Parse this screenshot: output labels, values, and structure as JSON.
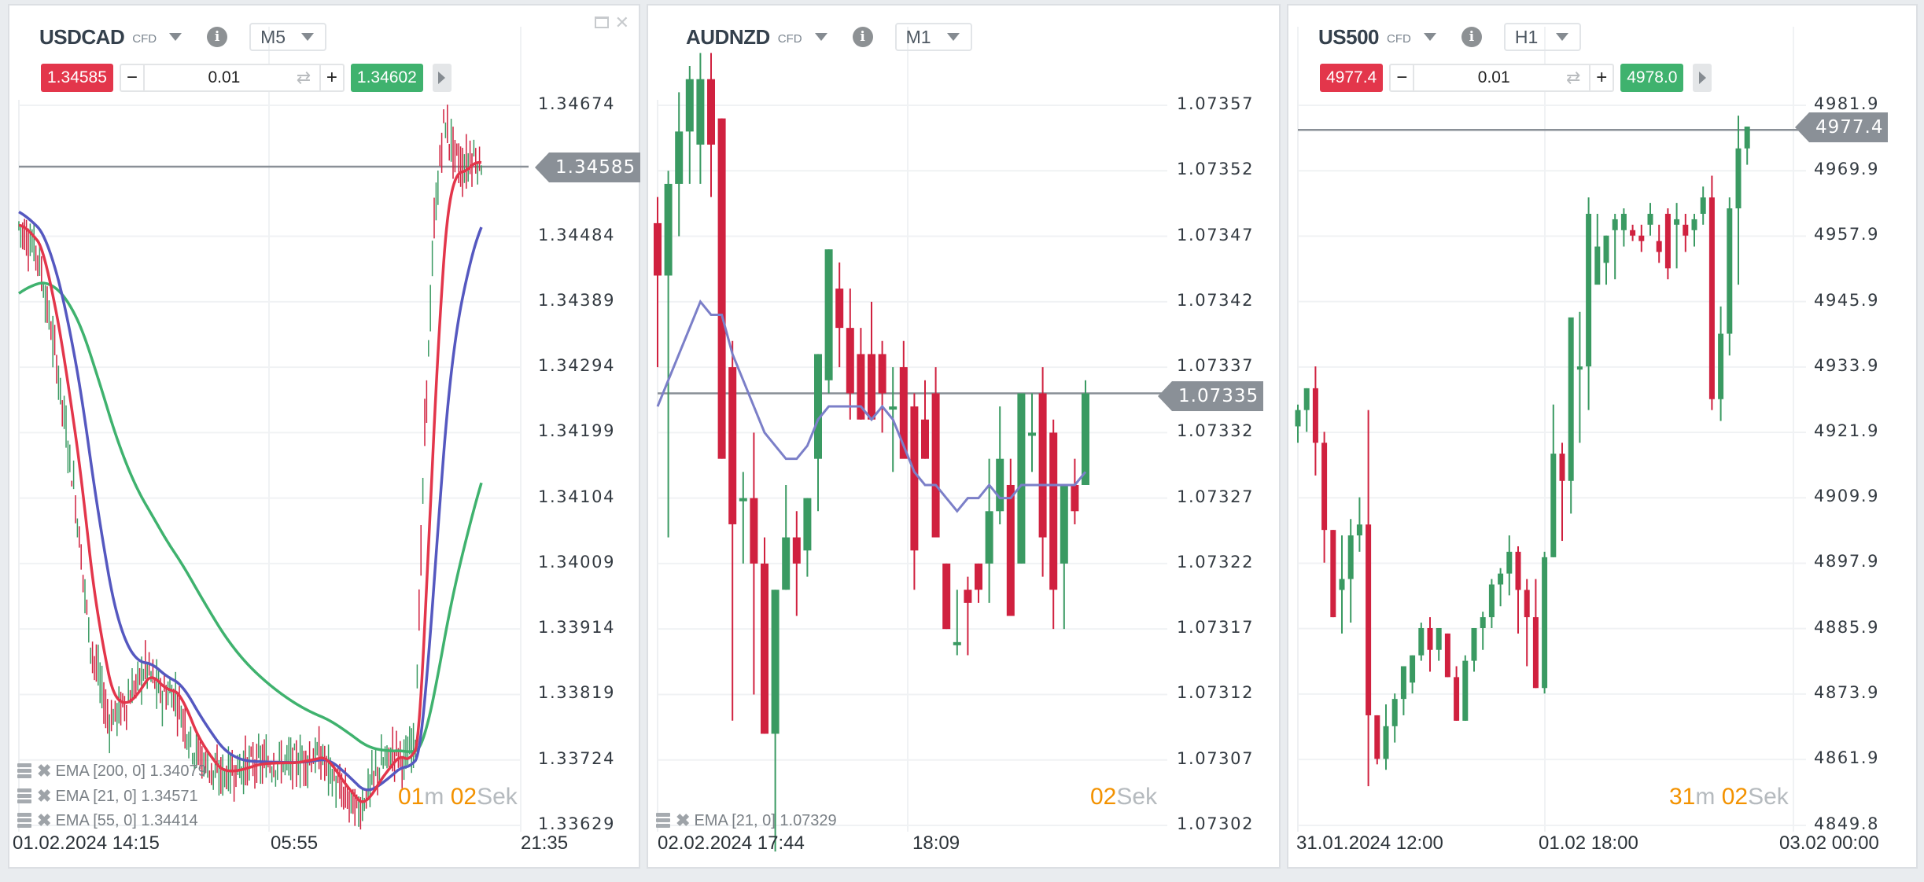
{
  "panels": [
    {
      "symbol": "USDCAD",
      "type_badge": "CFD",
      "timeframe": "M5",
      "sell_price": "1.34585",
      "buy_price": "1.34602",
      "quantity": "0.01",
      "current_price_label": "1.34585",
      "timer": {
        "m": "01",
        "m_unit": "m",
        "s": "02",
        "s_unit": "Sek"
      },
      "y_ticks": [
        "1.34674",
        "1.34484",
        "1.34389",
        "1.34294",
        "1.34199",
        "1.34104",
        "1.34009",
        "1.33914",
        "1.33819",
        "1.33724",
        "1.33629"
      ],
      "x_ticks": [
        "01.02.2024 14:15",
        "05:55",
        "21:35"
      ],
      "legend": [
        {
          "label": "EMA [200, 0] 1.34079",
          "color": "#3fb26e"
        },
        {
          "label": "EMA [21, 0] 1.34571",
          "color": "#e3364b"
        },
        {
          "label": "EMA [55, 0] 1.34414",
          "color": "#5558c0"
        }
      ],
      "has_window_controls": true
    },
    {
      "symbol": "AUDNZD",
      "type_badge": "CFD",
      "timeframe": "M1",
      "current_price_label": "1.07335",
      "timer": {
        "s": "02",
        "s_unit": "Sek"
      },
      "y_ticks": [
        "1.07357",
        "1.07352",
        "1.07347",
        "1.07342",
        "1.07337",
        "1.07332",
        "1.07327",
        "1.07322",
        "1.07317",
        "1.07312",
        "1.07307",
        "1.07302"
      ],
      "x_ticks": [
        "02.02.2024 17:44",
        "18:09"
      ],
      "legend": [
        {
          "label": "EMA [21, 0] 1.07329",
          "color": "#7b7fc8"
        }
      ]
    },
    {
      "symbol": "US500",
      "type_badge": "CFD",
      "timeframe": "H1",
      "sell_price": "4977.4",
      "buy_price": "4978.0",
      "quantity": "0.01",
      "current_price_label": "4977.4",
      "timer": {
        "m": "31",
        "m_unit": "m",
        "s": "02",
        "s_unit": "Sek"
      },
      "y_ticks": [
        "4981.9",
        "4969.9",
        "4957.9",
        "4945.9",
        "4933.9",
        "4921.9",
        "4909.9",
        "4897.9",
        "4885.9",
        "4873.9",
        "4861.9",
        "4849.8"
      ],
      "x_ticks": [
        "31.01.2024 12:00",
        "01.02 18:00",
        "03.02 00:00"
      ],
      "legend": []
    }
  ],
  "colors": {
    "bull": "#3a9a62",
    "bear": "#d0213f",
    "sell_bg": "#e3364b",
    "buy_bg": "#3fb26e",
    "timer_accent": "#f39200",
    "price_line": "#8a9097"
  },
  "chart_data": [
    {
      "type": "candlestick",
      "title": "USDCAD CFD M5",
      "ylim": [
        1.33629,
        1.34674
      ],
      "y_ticks": [
        1.34674,
        1.34484,
        1.34389,
        1.34294,
        1.34199,
        1.34104,
        1.34009,
        1.33914,
        1.33819,
        1.33724,
        1.33629
      ],
      "x_ticks": [
        "01.02.2024 14:15",
        "05:55",
        "21:35"
      ],
      "current_price": 1.34585,
      "series": [
        {
          "name": "EMA [200, 0]",
          "last": 1.34079,
          "color": "#3fb26e"
        },
        {
          "name": "EMA [21, 0]",
          "last": 1.34571,
          "color": "#e3364b"
        },
        {
          "name": "EMA [55, 0]",
          "last": 1.34414,
          "color": "#5558c0"
        }
      ],
      "trend_summary": "Sharp fall from ~1.3450 to ~1.3372, sideways ~1.3370-1.3380, then sharp rally to ~1.3465"
    },
    {
      "type": "candlestick",
      "title": "AUDNZD CFD M1",
      "ylim": [
        1.07302,
        1.07357
      ],
      "y_ticks": [
        1.07357,
        1.07352,
        1.07347,
        1.07342,
        1.07337,
        1.07332,
        1.07327,
        1.07322,
        1.07317,
        1.07312,
        1.07307,
        1.07302
      ],
      "x_ticks": [
        "02.02.2024 17:44",
        "18:09"
      ],
      "current_price": 1.07335,
      "series": [
        {
          "name": "EMA [21, 0]",
          "last": 1.07329,
          "color": "#7b7fc8"
        }
      ],
      "ohlc": [
        [
          1.07348,
          1.0735,
          1.07337,
          1.07344
        ],
        [
          1.07344,
          1.07352,
          1.07324,
          1.07351
        ],
        [
          1.07351,
          1.07358,
          1.07347,
          1.07355
        ],
        [
          1.07355,
          1.0736,
          1.07351,
          1.07359
        ],
        [
          1.07354,
          1.07361,
          1.07351,
          1.07359
        ],
        [
          1.07359,
          1.07361,
          1.0735,
          1.07354
        ],
        [
          1.07356,
          1.07356,
          1.0733,
          1.0733
        ],
        [
          1.07337,
          1.07339,
          1.0731,
          1.07325
        ],
        [
          1.07327,
          1.07329,
          1.07322,
          1.07327
        ],
        [
          1.07327,
          1.07332,
          1.07312,
          1.07322
        ],
        [
          1.07322,
          1.07324,
          1.07309,
          1.07309
        ],
        [
          1.07309,
          1.0732,
          1.073,
          1.0732
        ],
        [
          1.0732,
          1.07328,
          1.0732,
          1.07324
        ],
        [
          1.07324,
          1.07326,
          1.07318,
          1.07322
        ],
        [
          1.07323,
          1.07327,
          1.07321,
          1.07327
        ],
        [
          1.0733,
          1.07338,
          1.07326,
          1.07338
        ],
        [
          1.07336,
          1.07346,
          1.07335,
          1.07346
        ],
        [
          1.07343,
          1.07345,
          1.07337,
          1.0734
        ],
        [
          1.0734,
          1.07343,
          1.07333,
          1.07335
        ],
        [
          1.07338,
          1.0734,
          1.07333,
          1.07333
        ],
        [
          1.07338,
          1.07342,
          1.07334,
          1.07333
        ],
        [
          1.07338,
          1.07339,
          1.07332,
          1.07335
        ],
        [
          1.07334,
          1.07337,
          1.07329,
          1.07334
        ],
        [
          1.07337,
          1.07339,
          1.07333,
          1.0733
        ],
        [
          1.07334,
          1.07335,
          1.0732,
          1.07323
        ],
        [
          1.07333,
          1.07336,
          1.0733,
          1.0733
        ],
        [
          1.07335,
          1.07337,
          1.07325,
          1.07324
        ],
        [
          1.07322,
          1.07322,
          1.07317,
          1.07317
        ],
        [
          1.07316,
          1.0732,
          1.07315,
          1.07316
        ],
        [
          1.0732,
          1.07321,
          1.07315,
          1.07319
        ],
        [
          1.07322,
          1.07322,
          1.07319,
          1.0732
        ],
        [
          1.07322,
          1.0733,
          1.07319,
          1.07326
        ],
        [
          1.07326,
          1.07334,
          1.07325,
          1.0733
        ],
        [
          1.07328,
          1.0733,
          1.07318,
          1.07318
        ],
        [
          1.07322,
          1.0733,
          1.07322,
          1.07335
        ],
        [
          1.07332,
          1.07335,
          1.07329,
          1.07332
        ],
        [
          1.07335,
          1.07337,
          1.07321,
          1.07324
        ],
        [
          1.07332,
          1.07333,
          1.07317,
          1.0732
        ],
        [
          1.07322,
          1.07328,
          1.07317,
          1.07328
        ],
        [
          1.07328,
          1.0733,
          1.07325,
          1.07326
        ],
        [
          1.07328,
          1.07336,
          1.07328,
          1.07335
        ]
      ]
    },
    {
      "type": "candlestick",
      "title": "US500 CFD H1",
      "ylim": [
        4849.8,
        4981.9
      ],
      "y_ticks": [
        4981.9,
        4969.9,
        4957.9,
        4945.9,
        4933.9,
        4921.9,
        4909.9,
        4897.9,
        4885.9,
        4873.9,
        4861.9,
        4849.8
      ],
      "x_ticks": [
        "31.01.2024 12:00",
        "01.02 18:00",
        "03.02 00:00"
      ],
      "current_price": 4977.4,
      "ohlc": [
        [
          4923,
          4927,
          4920,
          4926
        ],
        [
          4926,
          4930,
          4922,
          4930
        ],
        [
          4930,
          4934,
          4914,
          4920
        ],
        [
          4920,
          4922,
          4898,
          4904
        ],
        [
          4904,
          4904,
          4888,
          4888
        ],
        [
          4893,
          4903,
          4885,
          4895
        ],
        [
          4895,
          4906,
          4887,
          4903
        ],
        [
          4903,
          4910,
          4900,
          4905
        ],
        [
          4905,
          4926,
          4857,
          4870
        ],
        [
          4870,
          4870,
          4861,
          4862
        ],
        [
          4862,
          4872,
          4860,
          4868
        ],
        [
          4868,
          4874,
          4865,
          4873
        ],
        [
          4873,
          4877,
          4870,
          4879
        ],
        [
          4876,
          4881,
          4874,
          4881
        ],
        [
          4881,
          4887,
          4880,
          4886
        ],
        [
          4886,
          4888,
          4878,
          4882
        ],
        [
          4882,
          4886,
          4880,
          4886
        ],
        [
          4885,
          4885,
          4877,
          4877
        ],
        [
          4877,
          4879,
          4869,
          4869
        ],
        [
          4869,
          4881,
          4869,
          4880
        ],
        [
          4880,
          4886,
          4878,
          4886
        ],
        [
          4886,
          4889,
          4882,
          4888
        ],
        [
          4888,
          4895,
          4886,
          4894
        ],
        [
          4894,
          4897,
          4890,
          4896
        ],
        [
          4896,
          4903,
          4892,
          4900
        ],
        [
          4900,
          4901,
          4885,
          4893
        ],
        [
          4893,
          4895,
          4879,
          4888
        ],
        [
          4888,
          4895,
          4875,
          4875
        ],
        [
          4875,
          4900,
          4874,
          4899
        ],
        [
          4899,
          4927,
          4899,
          4918
        ],
        [
          4918,
          4920,
          4902,
          4913
        ],
        [
          4913,
          4928,
          4907,
          4943
        ],
        [
          4934,
          4944,
          4920,
          4934
        ],
        [
          4934,
          4965,
          4926,
          4962
        ],
        [
          4949,
          4962,
          4951,
          4956
        ],
        [
          4953,
          4958,
          4949,
          4958
        ],
        [
          4959,
          4962,
          4950,
          4961
        ],
        [
          4959,
          4963,
          4956,
          4962
        ],
        [
          4959,
          4960,
          4957,
          4958
        ],
        [
          4958,
          4960,
          4955,
          4957
        ],
        [
          4960,
          4964,
          4958,
          4962
        ],
        [
          4957,
          4960,
          4953,
          4955
        ],
        [
          4962,
          4963,
          4950,
          4952
        ],
        [
          4960,
          4964,
          4952,
          4961
        ],
        [
          4960,
          4962,
          4955,
          4958
        ],
        [
          4959,
          4962,
          4956,
          4961
        ],
        [
          4962,
          4967,
          4960,
          4965
        ],
        [
          4965,
          4969,
          4926,
          4928
        ],
        [
          4928,
          4945,
          4924,
          4940
        ],
        [
          4940,
          4965,
          4936,
          4963
        ],
        [
          4963,
          4980,
          4949,
          4974
        ],
        [
          4974,
          4978,
          4971,
          4978
        ]
      ]
    }
  ]
}
